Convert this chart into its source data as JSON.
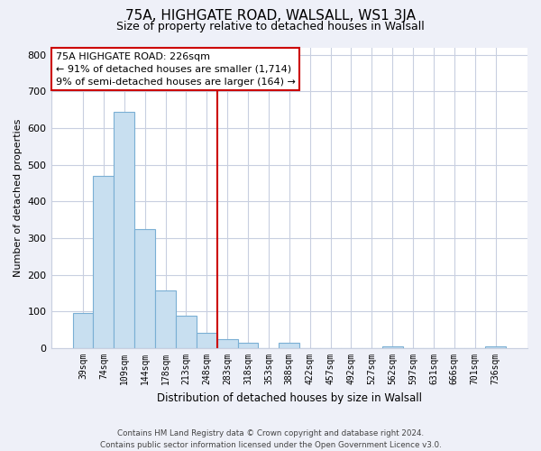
{
  "title": "75A, HIGHGATE ROAD, WALSALL, WS1 3JA",
  "subtitle": "Size of property relative to detached houses in Walsall",
  "xlabel": "Distribution of detached houses by size in Walsall",
  "ylabel": "Number of detached properties",
  "bar_labels": [
    "39sqm",
    "74sqm",
    "109sqm",
    "144sqm",
    "178sqm",
    "213sqm",
    "248sqm",
    "283sqm",
    "318sqm",
    "353sqm",
    "388sqm",
    "422sqm",
    "457sqm",
    "492sqm",
    "527sqm",
    "562sqm",
    "597sqm",
    "631sqm",
    "666sqm",
    "701sqm",
    "736sqm"
  ],
  "bar_heights": [
    95,
    470,
    645,
    325,
    158,
    88,
    43,
    25,
    14,
    0,
    14,
    0,
    0,
    0,
    0,
    5,
    0,
    0,
    0,
    0,
    5
  ],
  "bar_color": "#c8dff0",
  "bar_edge_color": "#7aafd4",
  "vline_color": "#cc0000",
  "vline_position": 6.5,
  "annotation_title": "75A HIGHGATE ROAD: 226sqm",
  "annotation_line1": "← 91% of detached houses are smaller (1,714)",
  "annotation_line2": "9% of semi-detached houses are larger (164) →",
  "ylim": [
    0,
    820
  ],
  "yticks": [
    0,
    100,
    200,
    300,
    400,
    500,
    600,
    700,
    800
  ],
  "footer_line1": "Contains HM Land Registry data © Crown copyright and database right 2024.",
  "footer_line2": "Contains public sector information licensed under the Open Government Licence v3.0.",
  "background_color": "#eef0f8",
  "plot_bg_color": "#ffffff",
  "grid_color": "#c8cfe0"
}
